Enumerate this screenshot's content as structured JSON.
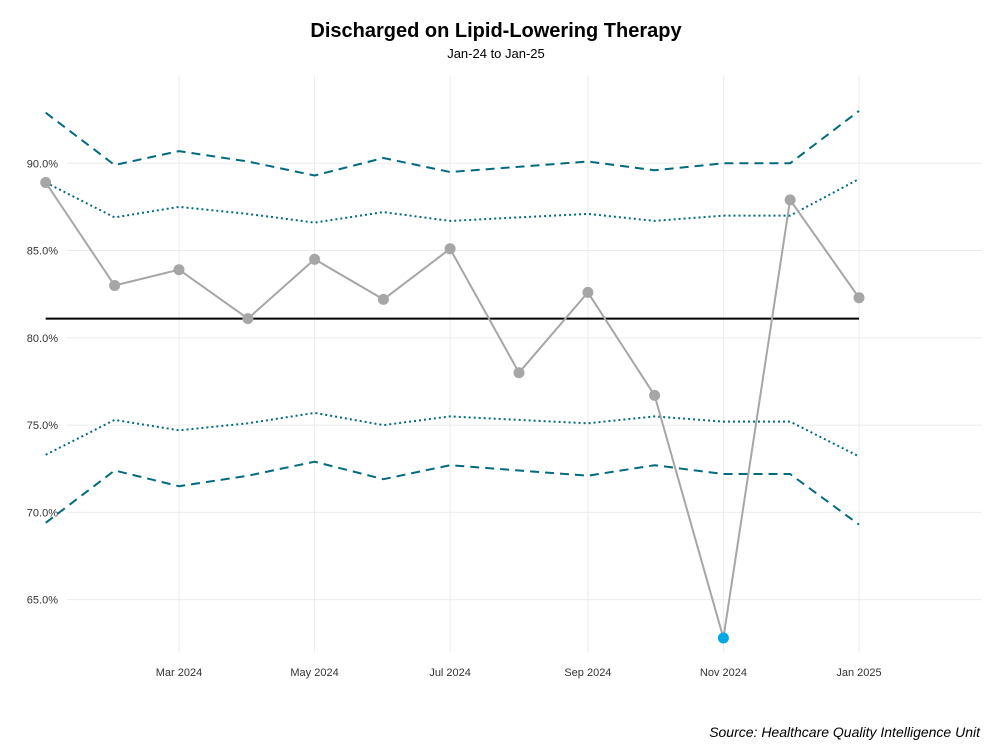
{
  "chart_data": {
    "type": "line",
    "title": "Discharged on Lipid-Lowering Therapy",
    "subtitle": "Jan-24 to Jan-25",
    "caption": "Source: Healthcare Quality Intelligence Unit",
    "xlabel": "",
    "ylabel": "",
    "x": [
      "2024-01-01",
      "2024-02-01",
      "2024-03-01",
      "2024-04-01",
      "2024-05-01",
      "2024-06-01",
      "2024-07-01",
      "2024-08-01",
      "2024-09-01",
      "2024-10-01",
      "2024-11-01",
      "2024-12-01",
      "2025-01-01"
    ],
    "x_ticks": [
      "Mar 2024",
      "May 2024",
      "Jul 2024",
      "Sep 2024",
      "Nov 2024",
      "Jan 2025"
    ],
    "y_ticks": [
      "65.0%",
      "70.0%",
      "75.0%",
      "80.0%",
      "85.0%",
      "90.0%"
    ],
    "ylim": [
      62,
      95
    ],
    "grid": true,
    "series": [
      {
        "role": "values",
        "values": [
          88.9,
          83.0,
          83.9,
          81.1,
          84.5,
          82.2,
          85.1,
          78.0,
          82.6,
          76.7,
          62.8,
          87.9,
          82.3
        ],
        "color": "#a6a6a6",
        "highlight_index": 10,
        "highlight_color": "#00a9e6"
      },
      {
        "role": "centre-line",
        "values": [
          81.1,
          81.1,
          81.1,
          81.1,
          81.1,
          81.1,
          81.1,
          81.1,
          81.1,
          81.1,
          81.1,
          81.1,
          81.1
        ],
        "color": "#000000"
      },
      {
        "role": "upper-outer-limit",
        "values": [
          92.9,
          89.9,
          90.7,
          90.1,
          89.3,
          90.3,
          89.5,
          89.8,
          90.1,
          89.6,
          90.0,
          90.0,
          93.0
        ],
        "color": "#006b80",
        "style": "dashed"
      },
      {
        "role": "upper-inner-limit",
        "values": [
          88.9,
          86.9,
          87.5,
          87.1,
          86.6,
          87.2,
          86.7,
          86.9,
          87.1,
          86.7,
          87.0,
          87.0,
          89.1
        ],
        "color": "#006b80",
        "style": "dotted"
      },
      {
        "role": "lower-inner-limit",
        "values": [
          73.3,
          75.3,
          74.7,
          75.1,
          75.7,
          75.0,
          75.5,
          75.3,
          75.1,
          75.5,
          75.2,
          75.2,
          73.2
        ],
        "color": "#006b80",
        "style": "dotted"
      },
      {
        "role": "lower-outer-limit",
        "values": [
          69.4,
          72.4,
          71.5,
          72.1,
          72.9,
          71.9,
          72.7,
          72.4,
          72.1,
          72.7,
          72.2,
          72.2,
          69.3
        ],
        "color": "#006b80",
        "style": "dashed"
      }
    ]
  }
}
